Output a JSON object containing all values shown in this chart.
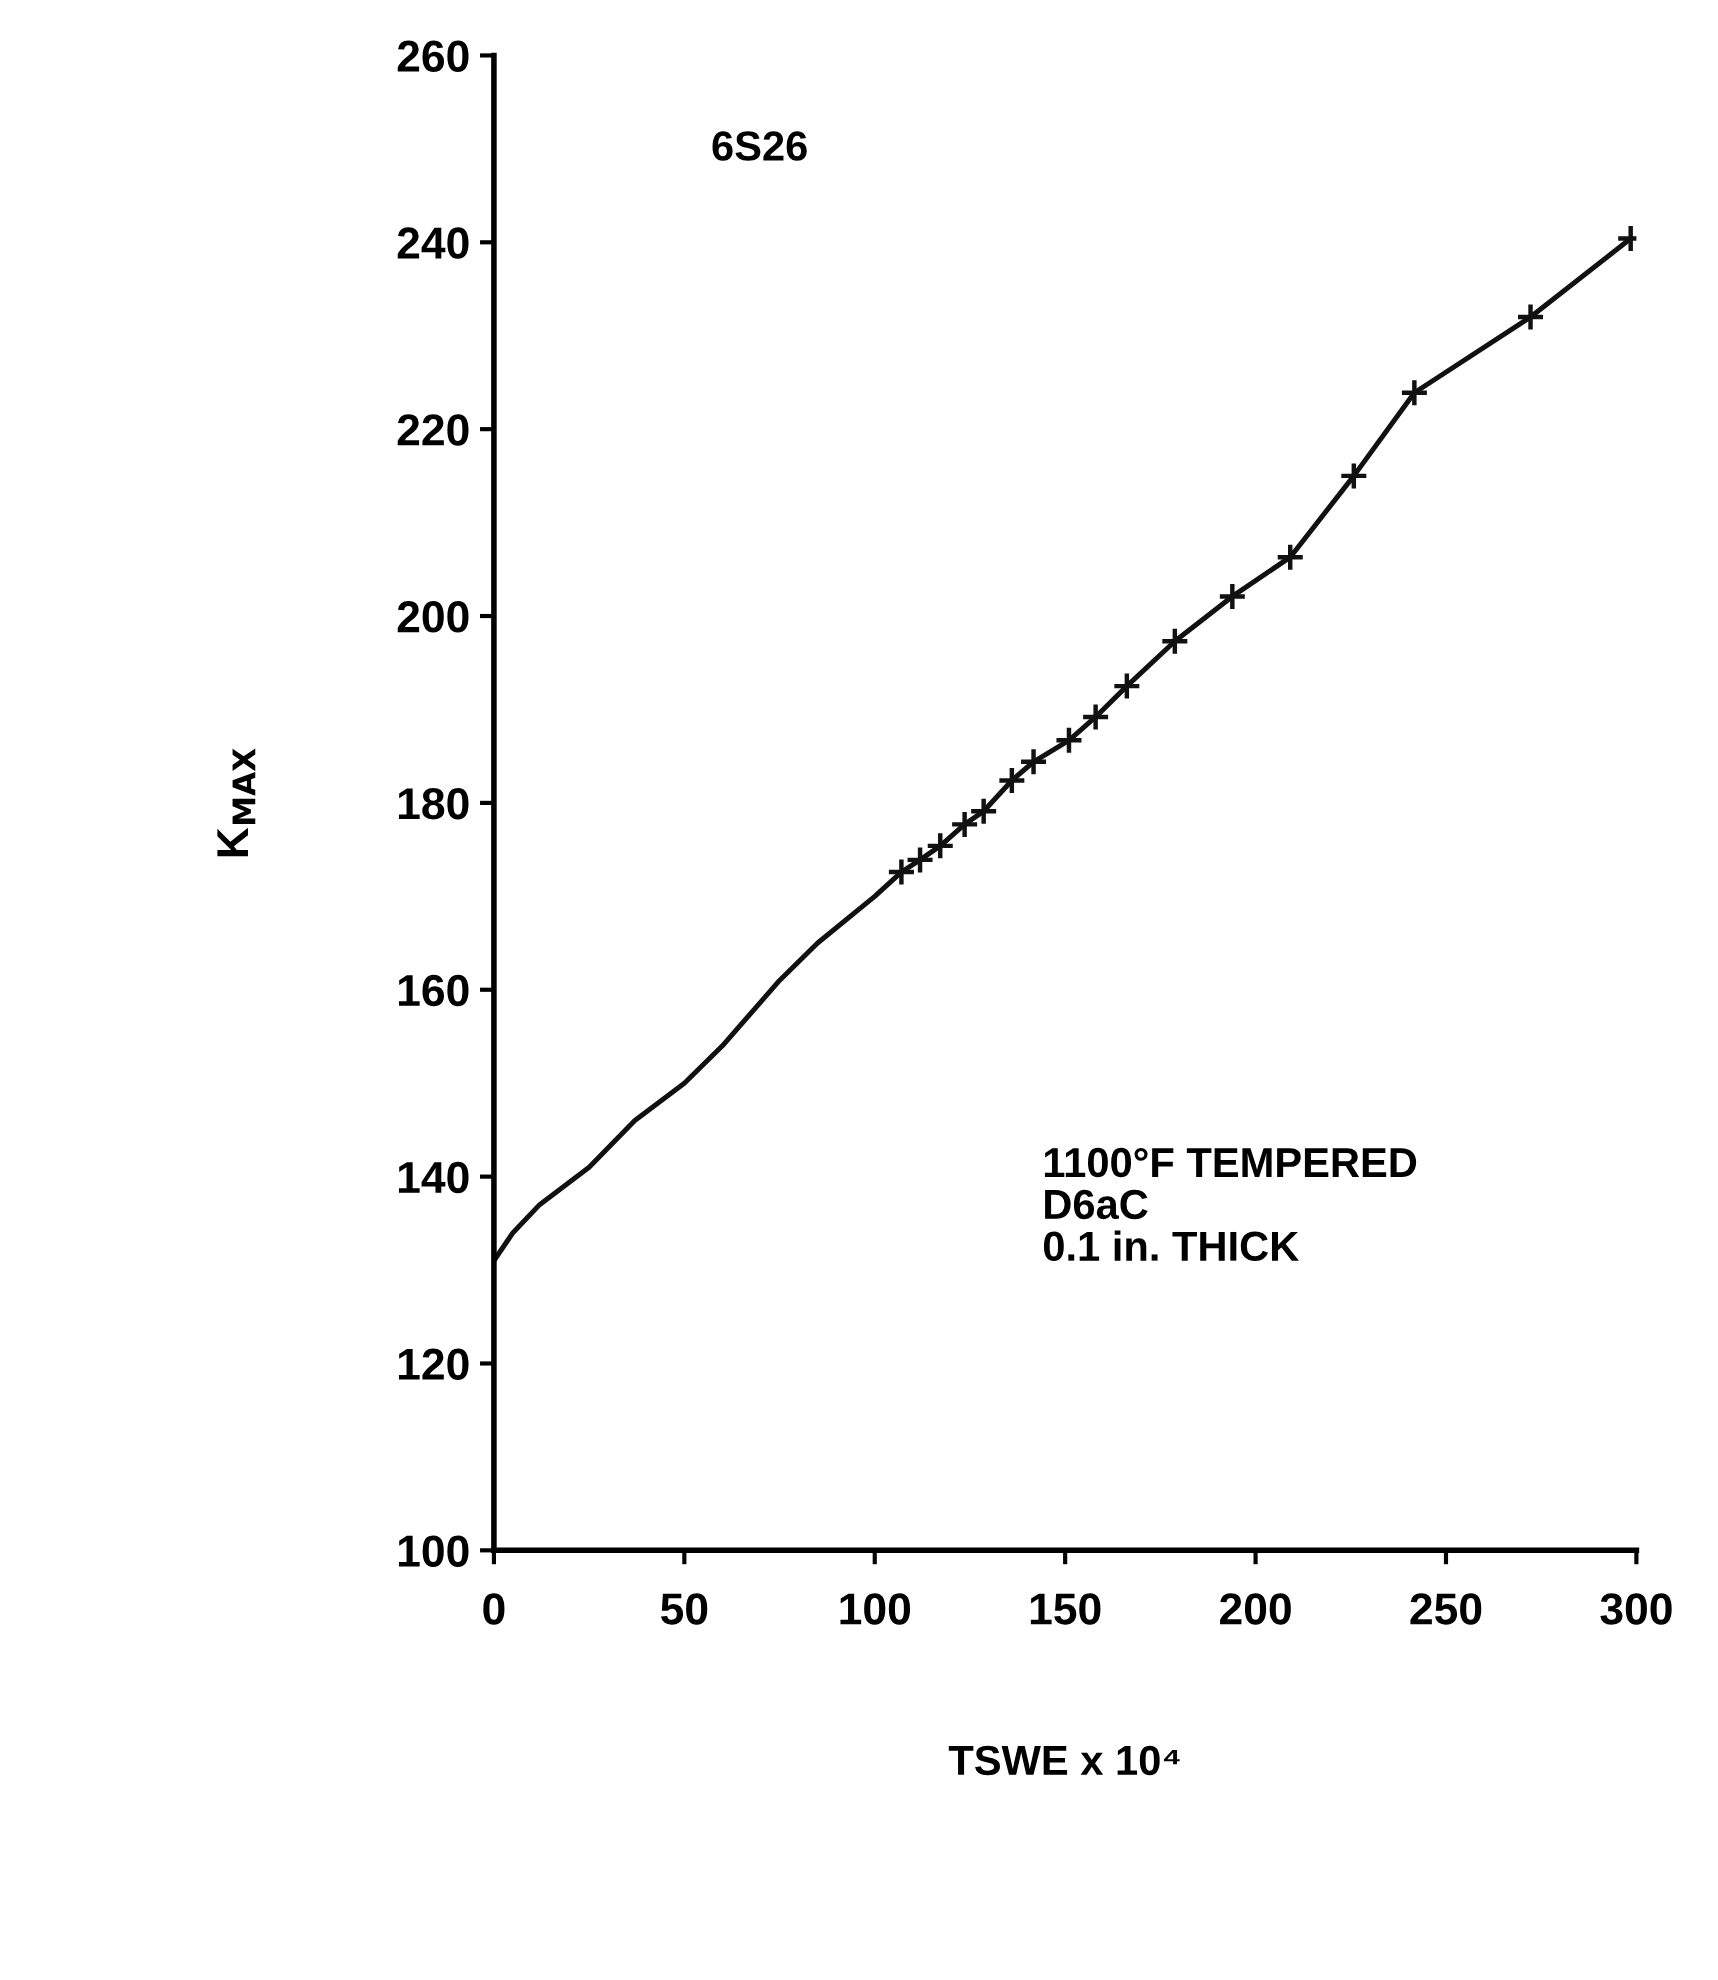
{
  "chart_data": {
    "type": "line",
    "xlabel": "TSWE x 10⁴",
    "ylabel": "K$_{MAX}$",
    "annotations": [
      "6S26",
      "1100°F TEMPERED\nD6aC\n0.1 in. THICK"
    ],
    "series": [
      {
        "color": "#111111",
        "marker": "none",
        "x": [
          0,
          5,
          12,
          25,
          37,
          50,
          60,
          75,
          85,
          100,
          107.0
        ],
        "values": [
          131,
          134,
          137,
          141,
          146,
          150,
          154,
          161,
          165,
          170,
          172.6
        ]
      },
      {
        "color": "#111111",
        "marker": "cross",
        "x": [
          107.0,
          111.9,
          117.2,
          123.6,
          128.6,
          136.0,
          141.7,
          151.0,
          158.0,
          166.2,
          178.8,
          193.9,
          209.1,
          225.8,
          241.7,
          272.2,
          298.5
        ],
        "values": [
          172.6,
          173.9,
          175.4,
          177.7,
          179.1,
          182.4,
          184.4,
          186.7,
          189.2,
          192.5,
          197.3,
          202.1,
          206.3,
          215.0,
          223.9,
          232.0,
          240.4
        ]
      }
    ],
    "xlim": [
      0,
      300
    ],
    "xticks": [
      0,
      50,
      100,
      150,
      200,
      250,
      300
    ],
    "ylim": [
      100,
      260
    ],
    "yticks": [
      100,
      120,
      140,
      160,
      180,
      200,
      220,
      240,
      260
    ],
    "grid": false,
    "legend": false
  }
}
